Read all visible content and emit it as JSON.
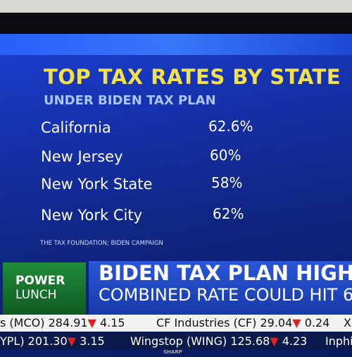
{
  "graphic": {
    "title": "TOP TAX RATES BY STATE",
    "subtitle": "UNDER BIDEN TAX PLAN",
    "rows": [
      {
        "state": "California",
        "rate": "62.6%"
      },
      {
        "state": "New Jersey",
        "rate": "60%"
      },
      {
        "state": "New York State",
        "rate": "58%"
      },
      {
        "state": "New York City",
        "rate": "62%"
      }
    ],
    "source": "THE TAX FOUNDATION; BIDEN CAMPAIGN"
  },
  "lower_third": {
    "brand": [
      "POWER",
      "LUNCH"
    ],
    "headline": [
      "BIDEN TAX PLAN HIGHS",
      "COMBINED RATE COULD HIT 6"
    ]
  },
  "ticker": {
    "row1": [
      {
        "name": "s (MCO)",
        "price": "284.91",
        "change": "4.15"
      },
      {
        "name": "CF Industries (CF)",
        "price": "29.04",
        "change": "0.24"
      },
      {
        "name": "X",
        "price": "",
        "change": ""
      }
    ],
    "row2": [
      {
        "name": "YPL)",
        "price": "201.30",
        "change": "3.15"
      },
      {
        "name": "Wingstop (WING)",
        "price": "125.68",
        "change": "4.23"
      },
      {
        "name": "Inphi",
        "price": "",
        "change": ""
      }
    ]
  },
  "tv_brand": "SHARP"
}
